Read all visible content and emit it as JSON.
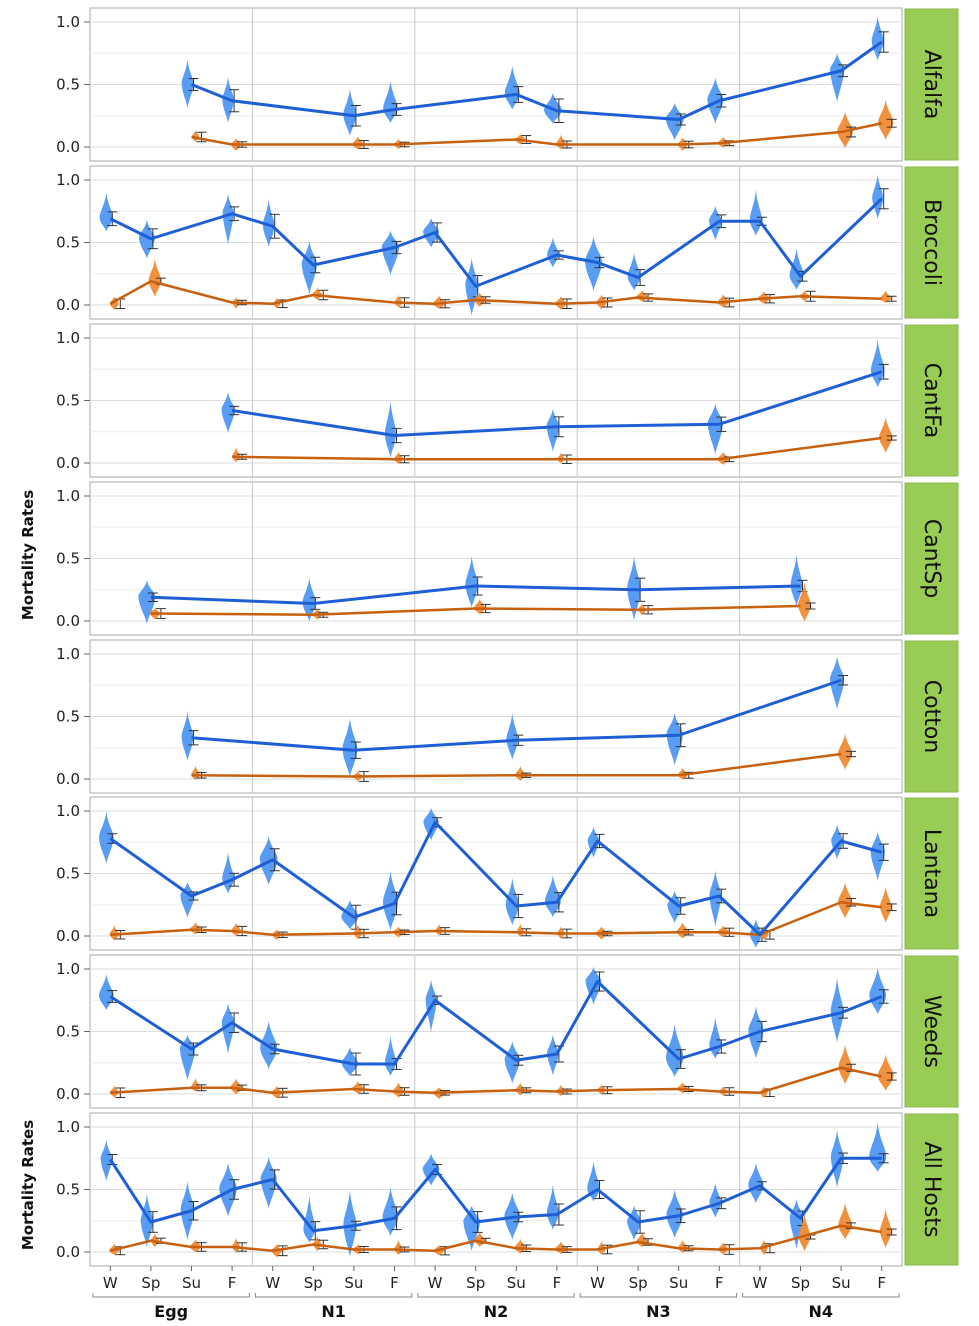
{
  "chart_data": {
    "type": "line",
    "ylabel": "Mortality Rates",
    "ylim": [
      0,
      1.0
    ],
    "y_ticks": [
      "0.0",
      "0.5",
      "1.0"
    ],
    "groups": [
      "Egg",
      "N1",
      "N2",
      "N3",
      "N4"
    ],
    "seasons": [
      "W",
      "Sp",
      "Su",
      "F"
    ],
    "colors": {
      "blue": "#1f5fd6",
      "blue_violin": "#4f97f2",
      "orange": "#c8610f",
      "orange_violin": "#f08a33",
      "strip": "#99cc55"
    },
    "panels": [
      {
        "name": "Alfalfa",
        "blue": [
          null,
          null,
          0.5,
          0.37,
          null,
          null,
          0.25,
          0.3,
          null,
          null,
          0.42,
          0.29,
          null,
          null,
          0.22,
          0.37,
          null,
          null,
          0.61,
          0.84
        ],
        "orange": [
          null,
          null,
          0.08,
          0.02,
          null,
          null,
          0.02,
          0.02,
          null,
          null,
          0.06,
          0.02,
          null,
          null,
          0.02,
          0.03,
          null,
          null,
          0.12,
          0.19
        ]
      },
      {
        "name": "Broccoli",
        "blue": [
          0.69,
          0.53,
          null,
          0.73,
          0.63,
          0.32,
          null,
          0.46,
          0.58,
          0.15,
          null,
          0.4,
          0.34,
          0.22,
          null,
          0.67,
          0.67,
          0.23,
          null,
          0.85
        ],
        "orange": [
          0.01,
          0.19,
          null,
          0.02,
          0.01,
          0.08,
          null,
          0.02,
          0.01,
          0.04,
          null,
          0.01,
          0.02,
          0.06,
          null,
          0.02,
          0.05,
          0.07,
          null,
          0.05
        ]
      },
      {
        "name": "CantFa",
        "blue": [
          null,
          null,
          null,
          0.42,
          null,
          null,
          null,
          0.22,
          null,
          null,
          null,
          0.29,
          null,
          null,
          null,
          0.31,
          null,
          null,
          null,
          0.73
        ],
        "orange": [
          null,
          null,
          null,
          0.05,
          null,
          null,
          null,
          0.03,
          null,
          null,
          null,
          0.03,
          null,
          null,
          null,
          0.03,
          null,
          null,
          null,
          0.2
        ]
      },
      {
        "name": "CantSp",
        "blue": [
          null,
          0.19,
          null,
          null,
          null,
          0.14,
          null,
          null,
          null,
          0.28,
          null,
          null,
          null,
          0.25,
          null,
          null,
          null,
          0.28,
          null,
          null
        ],
        "orange": [
          null,
          0.06,
          null,
          null,
          null,
          0.05,
          null,
          null,
          null,
          0.1,
          null,
          null,
          null,
          0.09,
          null,
          null,
          null,
          0.12,
          null,
          null
        ]
      },
      {
        "name": "Cotton",
        "blue": [
          null,
          null,
          0.33,
          null,
          null,
          null,
          0.23,
          null,
          null,
          null,
          0.31,
          null,
          null,
          null,
          0.35,
          null,
          null,
          null,
          0.79,
          null
        ],
        "orange": [
          null,
          null,
          0.03,
          null,
          null,
          null,
          0.02,
          null,
          null,
          null,
          0.03,
          null,
          null,
          null,
          0.03,
          null,
          null,
          null,
          0.2,
          null
        ]
      },
      {
        "name": "Lantana",
        "blue": [
          0.78,
          null,
          0.32,
          0.45,
          0.61,
          null,
          0.15,
          0.26,
          0.91,
          null,
          0.24,
          0.27,
          0.76,
          null,
          0.24,
          0.32,
          0.01,
          null,
          0.76,
          0.67
        ],
        "orange": [
          0.01,
          null,
          0.05,
          0.04,
          0.01,
          null,
          0.02,
          0.03,
          0.04,
          null,
          0.03,
          0.02,
          0.02,
          null,
          0.03,
          0.03,
          0.01,
          null,
          0.27,
          0.23
        ]
      },
      {
        "name": "Weeds",
        "blue": [
          0.78,
          null,
          0.36,
          0.57,
          0.36,
          null,
          0.24,
          0.24,
          0.75,
          null,
          0.27,
          0.32,
          0.9,
          null,
          0.28,
          0.38,
          0.5,
          null,
          0.65,
          0.78
        ],
        "orange": [
          0.01,
          null,
          0.05,
          0.05,
          0.01,
          null,
          0.04,
          0.02,
          0.01,
          null,
          0.03,
          0.02,
          0.03,
          null,
          0.04,
          0.02,
          0.01,
          null,
          0.21,
          0.14
        ]
      },
      {
        "name": "All Hosts",
        "blue": [
          0.74,
          0.24,
          0.33,
          0.5,
          0.58,
          0.17,
          0.21,
          0.27,
          0.66,
          0.24,
          0.28,
          0.3,
          0.5,
          0.24,
          0.29,
          0.39,
          0.53,
          0.27,
          0.75,
          0.75
        ],
        "orange": [
          0.01,
          0.09,
          0.04,
          0.04,
          0.01,
          0.06,
          0.02,
          0.02,
          0.01,
          0.09,
          0.03,
          0.02,
          0.02,
          0.08,
          0.03,
          0.02,
          0.03,
          0.12,
          0.21,
          0.16
        ]
      }
    ]
  }
}
